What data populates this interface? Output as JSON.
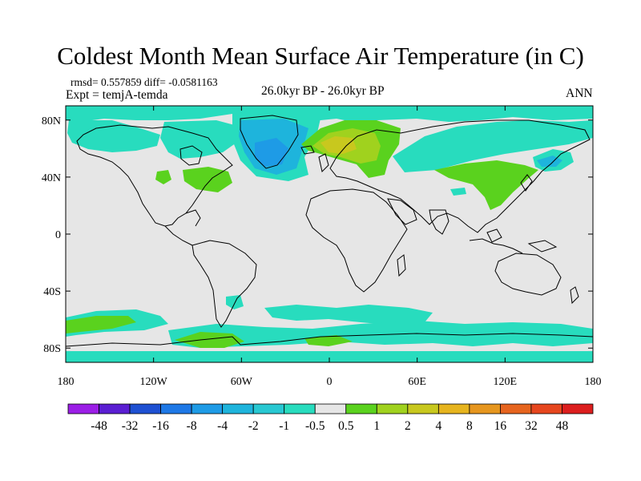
{
  "title": "Coldest Month Mean Surface Air Temperature (in C)",
  "stats": "rmsd= 0.557859 diff= -0.0581163",
  "experiment": "Expt = temjA-temda",
  "period": "26.0kyr BP - 26.0kyr BP",
  "season": "ANN",
  "lat_ticks": [
    {
      "value": 80,
      "label": "80N"
    },
    {
      "value": 40,
      "label": "40N"
    },
    {
      "value": 0,
      "label": "0"
    },
    {
      "value": -40,
      "label": "40S"
    },
    {
      "value": -80,
      "label": "80S"
    }
  ],
  "lon_ticks": [
    {
      "value": -180,
      "label": "180"
    },
    {
      "value": -120,
      "label": "120W"
    },
    {
      "value": -60,
      "label": "60W"
    },
    {
      "value": 0,
      "label": "0"
    },
    {
      "value": 60,
      "label": "60E"
    },
    {
      "value": 120,
      "label": "120E"
    },
    {
      "value": 180,
      "label": "180"
    }
  ],
  "colorbar": {
    "labels": [
      "-48",
      "-32",
      "-16",
      "-8",
      "-4",
      "-2",
      "-1",
      "-0.5",
      "0.5",
      "1",
      "2",
      "4",
      "8",
      "16",
      "32",
      "48"
    ],
    "colors": [
      "#9b1ee6",
      "#5a1ed2",
      "#1e50d2",
      "#1e78e6",
      "#1e9be6",
      "#1eb4dc",
      "#28c8d2",
      "#28dcbe",
      "#e6e6e6",
      "#5ad21e",
      "#a0d21e",
      "#c8c81e",
      "#e6b41e",
      "#e6961e",
      "#e6641e",
      "#e6461e",
      "#dc1e1e"
    ]
  },
  "colors": {
    "neutral": "#e6e6e6",
    "cyan": "#28dcbe",
    "light_blue": "#1eb4dc",
    "blue": "#1e9be6",
    "green": "#5ad21e",
    "yellow_green": "#a0d21e",
    "yellow": "#c8c81e"
  }
}
